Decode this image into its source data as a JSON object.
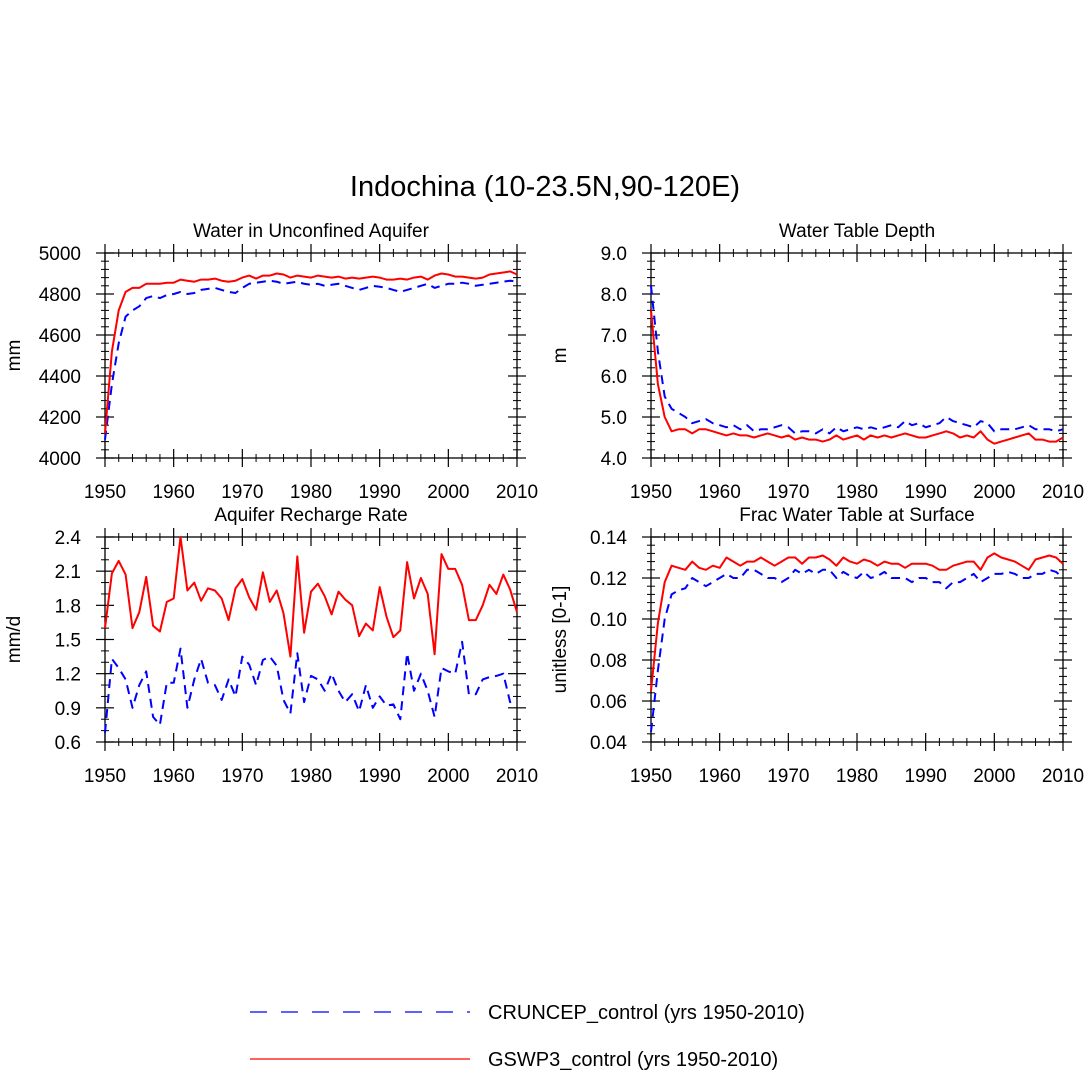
{
  "figure_title": "Indochina (10-23.5N,90-120E)",
  "colors": {
    "CRUNCEP": "#0000ff",
    "GSWP3": "#ff0000"
  },
  "legend": [
    {
      "name": "CRUNCEP_control (yrs 1950-2010)",
      "style": "dashed",
      "color": "#0000ff"
    },
    {
      "name": "GSWP3_control (yrs 1950-2010)",
      "style": "solid",
      "color": "#ff0000"
    }
  ],
  "chart_data": [
    {
      "type": "line",
      "title": "Water in Unconfined Aquifer",
      "xlabel": "",
      "ylabel": "mm",
      "xlim": [
        1950,
        2010
      ],
      "ylim": [
        4000,
        5000
      ],
      "xticks": [
        1950,
        1960,
        1970,
        1980,
        1990,
        2000,
        2010
      ],
      "yticks": [
        4000,
        4200,
        4400,
        4600,
        4800,
        5000
      ],
      "yticklabels": [
        "4000",
        "4200",
        "4400",
        "4600",
        "4800",
        "5000"
      ],
      "minor_y": 4,
      "x_start": 1950,
      "series": [
        {
          "name": "CRUNCEP_control (yrs 1950-2010)",
          "style": "dashed",
          "color": "#0000ff",
          "values": [
            4090,
            4360,
            4560,
            4690,
            4720,
            4740,
            4780,
            4790,
            4780,
            4795,
            4800,
            4810,
            4800,
            4805,
            4820,
            4825,
            4830,
            4820,
            4810,
            4805,
            4830,
            4850,
            4855,
            4860,
            4865,
            4860,
            4850,
            4855,
            4860,
            4850,
            4845,
            4850,
            4840,
            4845,
            4850,
            4840,
            4830,
            4820,
            4830,
            4840,
            4835,
            4830,
            4820,
            4810,
            4820,
            4830,
            4840,
            4850,
            4830,
            4840,
            4850,
            4850,
            4855,
            4850,
            4840,
            4845,
            4850,
            4855,
            4860,
            4865,
            4860
          ]
        },
        {
          "name": "GSWP3_control (yrs 1950-2010)",
          "style": "solid",
          "color": "#ff0000",
          "values": [
            4120,
            4520,
            4720,
            4810,
            4830,
            4830,
            4850,
            4850,
            4850,
            4855,
            4855,
            4870,
            4865,
            4860,
            4870,
            4870,
            4875,
            4865,
            4860,
            4865,
            4880,
            4890,
            4875,
            4890,
            4890,
            4900,
            4895,
            4880,
            4890,
            4885,
            4880,
            4890,
            4885,
            4880,
            4885,
            4875,
            4880,
            4875,
            4880,
            4885,
            4880,
            4870,
            4870,
            4875,
            4870,
            4880,
            4885,
            4870,
            4890,
            4900,
            4895,
            4885,
            4885,
            4880,
            4875,
            4880,
            4895,
            4900,
            4905,
            4910,
            4895
          ]
        }
      ]
    },
    {
      "type": "line",
      "title": "Water Table Depth",
      "xlabel": "",
      "ylabel": "m",
      "xlim": [
        1950,
        2010
      ],
      "ylim": [
        4.0,
        9.0
      ],
      "xticks": [
        1950,
        1960,
        1970,
        1980,
        1990,
        2000,
        2010
      ],
      "yticks": [
        4,
        5,
        6,
        7,
        8,
        9
      ],
      "yticklabels": [
        "4.0",
        "5.0",
        "6.0",
        "7.0",
        "8.0",
        "9.0"
      ],
      "minor_y": 4,
      "x_start": 1950,
      "series": [
        {
          "name": "CRUNCEP_control (yrs 1950-2010)",
          "style": "dashed",
          "color": "#0000ff",
          "values": [
            8.2,
            6.6,
            5.5,
            5.2,
            5.1,
            5.0,
            4.85,
            4.9,
            4.95,
            4.85,
            4.8,
            4.75,
            4.8,
            4.7,
            4.8,
            4.65,
            4.7,
            4.7,
            4.75,
            4.8,
            4.75,
            4.6,
            4.65,
            4.65,
            4.6,
            4.7,
            4.6,
            4.75,
            4.65,
            4.7,
            4.75,
            4.7,
            4.75,
            4.7,
            4.75,
            4.8,
            4.75,
            4.9,
            4.8,
            4.85,
            4.75,
            4.8,
            4.85,
            5.0,
            4.9,
            4.85,
            4.8,
            4.75,
            4.9,
            4.85,
            4.65,
            4.7,
            4.7,
            4.7,
            4.75,
            4.8,
            4.7,
            4.7,
            4.7,
            4.65,
            4.7
          ]
        },
        {
          "name": "GSWP3_control (yrs 1950-2010)",
          "style": "solid",
          "color": "#ff0000",
          "values": [
            7.6,
            5.8,
            5.0,
            4.65,
            4.7,
            4.7,
            4.6,
            4.7,
            4.7,
            4.65,
            4.6,
            4.55,
            4.6,
            4.55,
            4.55,
            4.5,
            4.55,
            4.6,
            4.55,
            4.5,
            4.55,
            4.45,
            4.5,
            4.45,
            4.45,
            4.4,
            4.45,
            4.55,
            4.45,
            4.5,
            4.55,
            4.45,
            4.55,
            4.5,
            4.55,
            4.5,
            4.55,
            4.6,
            4.55,
            4.5,
            4.5,
            4.55,
            4.6,
            4.65,
            4.6,
            4.5,
            4.55,
            4.5,
            4.65,
            4.45,
            4.35,
            4.4,
            4.45,
            4.5,
            4.55,
            4.6,
            4.45,
            4.45,
            4.4,
            4.4,
            4.5
          ]
        }
      ]
    },
    {
      "type": "line",
      "title": "Aquifer Recharge Rate",
      "xlabel": "",
      "ylabel": "mm/d",
      "xlim": [
        1950,
        2010
      ],
      "ylim": [
        0.6,
        2.4
      ],
      "xticks": [
        1950,
        1960,
        1970,
        1980,
        1990,
        2000,
        2010
      ],
      "yticks": [
        0.6,
        0.9,
        1.2,
        1.5,
        1.8,
        2.1,
        2.4
      ],
      "yticklabels": [
        "0.6",
        "0.9",
        "1.2",
        "1.5",
        "1.8",
        "2.1",
        "2.4"
      ],
      "minor_y": 2,
      "x_start": 1950,
      "series": [
        {
          "name": "CRUNCEP_control (yrs 1950-2010)",
          "style": "dashed",
          "color": "#0000ff",
          "values": [
            0.68,
            1.33,
            1.25,
            1.15,
            0.9,
            1.1,
            1.22,
            0.82,
            0.75,
            1.12,
            1.12,
            1.42,
            0.9,
            1.15,
            1.33,
            1.12,
            1.1,
            0.97,
            1.15,
            1.0,
            1.35,
            1.28,
            1.1,
            1.32,
            1.35,
            1.27,
            0.97,
            0.85,
            1.38,
            0.95,
            1.18,
            1.15,
            1.05,
            1.2,
            1.05,
            0.95,
            1.02,
            0.87,
            1.1,
            0.9,
            1.0,
            0.92,
            0.93,
            0.8,
            1.38,
            1.05,
            1.2,
            1.05,
            0.82,
            1.25,
            1.22,
            1.2,
            1.48,
            1.02,
            1.02,
            1.15,
            1.17,
            1.18,
            1.2,
            0.95,
            0.98
          ]
        },
        {
          "name": "GSWP3_control (yrs 1950-2010)",
          "style": "solid",
          "color": "#ff0000",
          "values": [
            1.6,
            2.08,
            2.19,
            2.07,
            1.6,
            1.74,
            2.05,
            1.62,
            1.57,
            1.83,
            1.86,
            2.4,
            1.93,
            2.0,
            1.84,
            1.95,
            1.93,
            1.86,
            1.67,
            1.95,
            2.03,
            1.87,
            1.76,
            2.09,
            1.83,
            1.93,
            1.73,
            1.35,
            2.23,
            1.56,
            1.92,
            1.99,
            1.88,
            1.72,
            1.92,
            1.85,
            1.8,
            1.53,
            1.64,
            1.58,
            1.96,
            1.7,
            1.52,
            1.58,
            2.18,
            1.86,
            2.04,
            1.9,
            1.37,
            2.25,
            2.12,
            2.12,
            1.98,
            1.67,
            1.67,
            1.8,
            1.98,
            1.9,
            2.07,
            1.94,
            1.74
          ]
        }
      ]
    },
    {
      "type": "line",
      "title": "Frac Water Table at Surface",
      "xlabel": "",
      "ylabel": "unitless [0-1]",
      "xlim": [
        1950,
        2010
      ],
      "ylim": [
        0.04,
        0.14
      ],
      "xticks": [
        1950,
        1960,
        1970,
        1980,
        1990,
        2000,
        2010
      ],
      "yticks": [
        0.04,
        0.06,
        0.08,
        0.1,
        0.12,
        0.14
      ],
      "yticklabels": [
        "0.04",
        "0.06",
        "0.08",
        "0.10",
        "0.12",
        "0.14"
      ],
      "minor_y": 4,
      "x_start": 1950,
      "series": [
        {
          "name": "CRUNCEP_control (yrs 1950-2010)",
          "style": "dashed",
          "color": "#0000ff",
          "values": [
            0.045,
            0.075,
            0.1,
            0.112,
            0.114,
            0.115,
            0.12,
            0.118,
            0.116,
            0.118,
            0.12,
            0.122,
            0.12,
            0.12,
            0.124,
            0.124,
            0.122,
            0.12,
            0.12,
            0.118,
            0.12,
            0.124,
            0.122,
            0.124,
            0.122,
            0.124,
            0.124,
            0.12,
            0.123,
            0.121,
            0.12,
            0.123,
            0.12,
            0.121,
            0.123,
            0.12,
            0.12,
            0.12,
            0.118,
            0.12,
            0.12,
            0.118,
            0.118,
            0.115,
            0.118,
            0.118,
            0.12,
            0.122,
            0.118,
            0.12,
            0.122,
            0.122,
            0.123,
            0.122,
            0.12,
            0.12,
            0.122,
            0.122,
            0.124,
            0.123,
            0.12
          ]
        },
        {
          "name": "GSWP3_control (yrs 1950-2010)",
          "style": "solid",
          "color": "#ff0000",
          "values": [
            0.065,
            0.098,
            0.118,
            0.126,
            0.125,
            0.124,
            0.128,
            0.125,
            0.124,
            0.126,
            0.125,
            0.13,
            0.128,
            0.126,
            0.128,
            0.128,
            0.13,
            0.128,
            0.126,
            0.128,
            0.13,
            0.13,
            0.127,
            0.13,
            0.13,
            0.131,
            0.129,
            0.126,
            0.13,
            0.128,
            0.127,
            0.129,
            0.128,
            0.126,
            0.128,
            0.127,
            0.127,
            0.125,
            0.127,
            0.127,
            0.127,
            0.126,
            0.124,
            0.124,
            0.126,
            0.127,
            0.128,
            0.128,
            0.124,
            0.13,
            0.132,
            0.13,
            0.129,
            0.128,
            0.126,
            0.124,
            0.129,
            0.13,
            0.131,
            0.13,
            0.127
          ]
        }
      ]
    }
  ]
}
